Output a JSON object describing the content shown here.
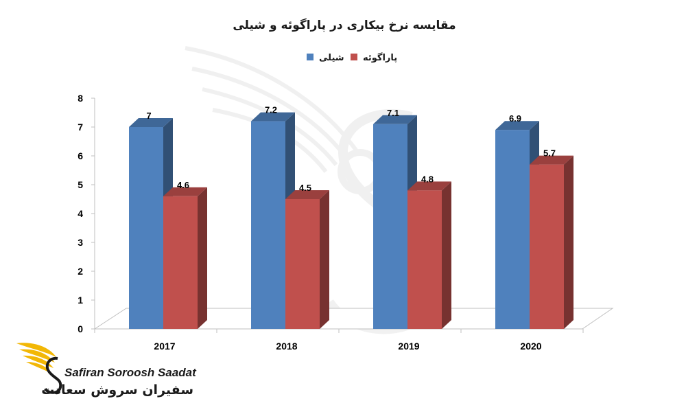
{
  "chart_data": {
    "type": "bar",
    "title": "مقایسه نرخ بیکاری در پاراگوئه و شیلی",
    "categories": [
      "2017",
      "2018",
      "2019",
      "2020"
    ],
    "series": [
      {
        "name": "شیلی",
        "color": "#4f81bd",
        "values": [
          7,
          7.2,
          7.1,
          6.9
        ]
      },
      {
        "name": "پاراگوئه",
        "color": "#c0504d",
        "values": [
          4.6,
          4.5,
          4.8,
          5.7
        ]
      }
    ],
    "value_labels": [
      [
        "7",
        "7.2",
        "7.1",
        "6.9"
      ],
      [
        "4.6",
        "4.5",
        "4.8",
        "5.7"
      ]
    ],
    "ylim": [
      0,
      8
    ],
    "yticks": [
      "0",
      "1",
      "2",
      "3",
      "4",
      "5",
      "6",
      "7",
      "8"
    ],
    "xlabel": "",
    "ylabel": "",
    "legend_position": "top",
    "bar_style": "3d-clustered",
    "grid": false
  },
  "watermark": {
    "icon": "phoenix-wing-s-icon"
  },
  "brand": {
    "name_en": "Safiran Soroosh Saadat",
    "name_fa": "سفیران سروش سعادت",
    "icon": "phoenix-wing-logo-icon",
    "colors": {
      "wing": "#f2b705",
      "text": "#1a1a1a"
    }
  }
}
